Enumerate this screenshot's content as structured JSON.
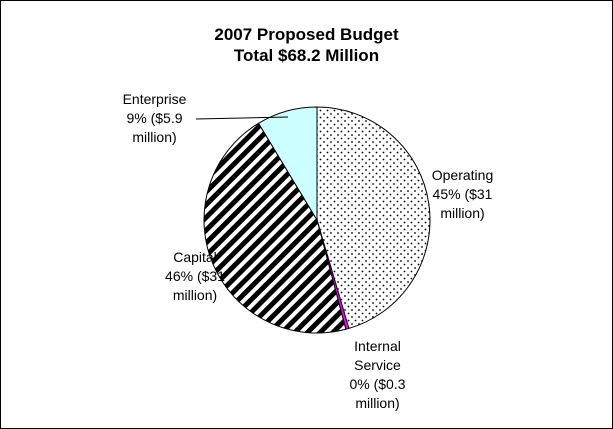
{
  "chart_data": {
    "type": "pie",
    "title": "2007 Proposed Budget",
    "subtitle": "Total $68.2 Million",
    "labels": [
      {
        "lines": [
          "Operating",
          "45% ($31",
          "million)"
        ]
      },
      {
        "lines": [
          "Internal",
          "Service",
          "0% ($0.3",
          "million)"
        ]
      },
      {
        "lines": [
          "Capital",
          "46% ($31",
          "million)"
        ]
      },
      {
        "lines": [
          "Enterprise",
          "9% ($5.9",
          "million)"
        ]
      }
    ],
    "slices": [
      {
        "value": 31.0,
        "percent": 45,
        "fill": "pattern-dots"
      },
      {
        "value": 0.3,
        "percent": 0,
        "fill": "#ff00ff"
      },
      {
        "value": 31.0,
        "percent": 46,
        "fill": "pattern-diagonal"
      },
      {
        "value": 5.9,
        "percent": 9,
        "fill": "#ccffff"
      }
    ],
    "start_angle": "top",
    "direction": "clockwise"
  }
}
